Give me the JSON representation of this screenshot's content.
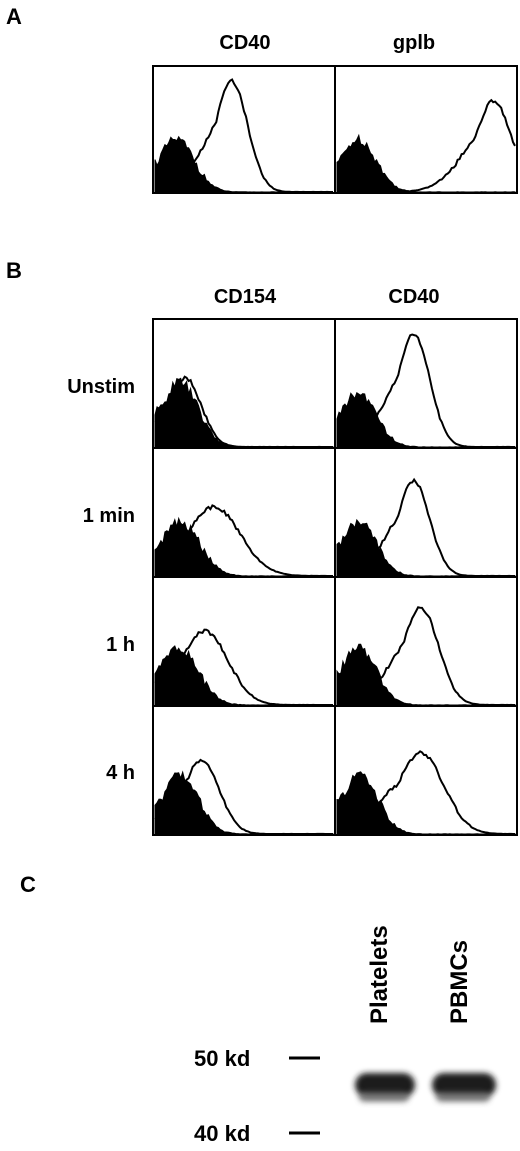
{
  "panels": {
    "A": {
      "letter": "A",
      "columns": [
        "CD40",
        "gplb"
      ]
    },
    "B": {
      "letter": "B",
      "columns": [
        "CD154",
        "CD40"
      ],
      "rows": [
        "Unstim",
        "1 min",
        "1 h",
        "4 h"
      ]
    },
    "C": {
      "letter": "C",
      "lanes": [
        "Platelets",
        "PBMCs"
      ],
      "markers": [
        "50 kd",
        "40 kd"
      ]
    }
  },
  "chart_data": [
    {
      "type": "area",
      "panel": "A",
      "subplots": [
        {
          "column": "CD40",
          "series": [
            {
              "role": "control-filled",
              "peak": 0.12,
              "width": 0.1,
              "height": 0.45
            },
            {
              "role": "stained-open",
              "peak": 0.43,
              "width": 0.09,
              "height": 0.95
            }
          ]
        },
        {
          "column": "gplb",
          "series": [
            {
              "role": "control-filled",
              "peak": 0.12,
              "width": 0.1,
              "height": 0.45
            },
            {
              "role": "stained-open",
              "peak": 0.88,
              "width": 0.1,
              "height": 0.78
            }
          ]
        }
      ]
    },
    {
      "type": "area",
      "panel": "B",
      "subplots": [
        {
          "row": "Unstim",
          "column": "CD154",
          "series": [
            {
              "role": "control-filled",
              "peak": 0.14,
              "width": 0.1,
              "height": 0.55
            },
            {
              "role": "stained-open",
              "peak": 0.17,
              "width": 0.09,
              "height": 0.58
            }
          ]
        },
        {
          "row": "Unstim",
          "column": "CD40",
          "series": [
            {
              "role": "control-filled",
              "peak": 0.12,
              "width": 0.1,
              "height": 0.45
            },
            {
              "role": "stained-open",
              "peak": 0.43,
              "width": 0.09,
              "height": 0.95
            }
          ]
        },
        {
          "row": "1 min",
          "column": "CD154",
          "series": [
            {
              "role": "control-filled",
              "peak": 0.14,
              "width": 0.11,
              "height": 0.45
            },
            {
              "role": "stained-open",
              "peak": 0.33,
              "width": 0.15,
              "height": 0.58
            }
          ]
        },
        {
          "row": "1 min",
          "column": "CD40",
          "series": [
            {
              "role": "control-filled",
              "peak": 0.12,
              "width": 0.1,
              "height": 0.45
            },
            {
              "role": "stained-open",
              "peak": 0.43,
              "width": 0.09,
              "height": 0.8
            }
          ]
        },
        {
          "row": "1 h",
          "column": "CD154",
          "series": [
            {
              "role": "control-filled",
              "peak": 0.13,
              "width": 0.11,
              "height": 0.48
            },
            {
              "role": "stained-open",
              "peak": 0.28,
              "width": 0.13,
              "height": 0.62
            }
          ]
        },
        {
          "row": "1 h",
          "column": "CD40",
          "series": [
            {
              "role": "control-filled",
              "peak": 0.12,
              "width": 0.1,
              "height": 0.48
            },
            {
              "role": "stained-open",
              "peak": 0.47,
              "width": 0.1,
              "height": 0.82
            }
          ]
        },
        {
          "row": "4 h",
          "column": "CD154",
          "series": [
            {
              "role": "control-filled",
              "peak": 0.14,
              "width": 0.1,
              "height": 0.5
            },
            {
              "role": "stained-open",
              "peak": 0.26,
              "width": 0.1,
              "height": 0.62
            }
          ]
        },
        {
          "row": "4 h",
          "column": "CD40",
          "series": [
            {
              "role": "control-filled",
              "peak": 0.13,
              "width": 0.1,
              "height": 0.5
            },
            {
              "role": "stained-open",
              "peak": 0.47,
              "width": 0.13,
              "height": 0.68
            }
          ]
        }
      ]
    }
  ],
  "colors": {
    "ink": "#000000",
    "paper": "#ffffff",
    "band": "#1a1a1a",
    "band_faint": "#6e6e6e"
  }
}
